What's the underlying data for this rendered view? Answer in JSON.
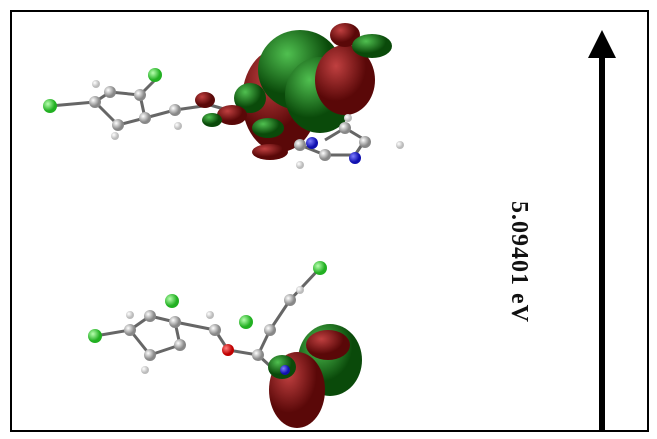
{
  "energy_gap": {
    "label": "5.09401 eV"
  }
}
